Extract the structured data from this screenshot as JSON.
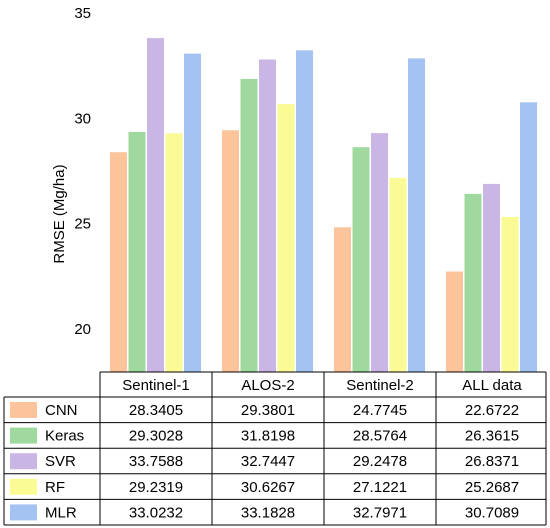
{
  "chart_data": {
    "type": "bar",
    "categories": [
      "Sentinel-1",
      "ALOS-2",
      "Sentinel-2",
      "ALL data"
    ],
    "series": [
      {
        "name": "CNN",
        "color": "#fbc49a",
        "values": [
          28.3405,
          29.3801,
          24.7745,
          22.6722
        ]
      },
      {
        "name": "Keras",
        "color": "#9fd9a0",
        "values": [
          29.3028,
          31.8198,
          28.5764,
          26.3615
        ]
      },
      {
        "name": "SVR",
        "color": "#c9b6e4",
        "values": [
          33.7588,
          32.7447,
          29.2478,
          26.8371
        ]
      },
      {
        "name": "RF",
        "color": "#fbfb95",
        "values": [
          29.2319,
          30.6267,
          27.1221,
          25.2687
        ]
      },
      {
        "name": "MLR",
        "color": "#a4c3f3",
        "values": [
          33.0232,
          33.1828,
          32.7971,
          30.7089
        ]
      }
    ],
    "table_values": [
      [
        "28.3405",
        "29.3801",
        "24.7745",
        "22.6722"
      ],
      [
        "29.3028",
        "31.8198",
        "28.5764",
        "26.3615"
      ],
      [
        "33.7588",
        "32.7447",
        "29.2478",
        "26.8371"
      ],
      [
        "29.2319",
        "30.6267",
        "27.1221",
        "25.2687"
      ],
      [
        "33.0232",
        "33.1828",
        "32.7971",
        "30.7089"
      ]
    ],
    "ylabel": "RMSE (Mg/ha)",
    "xlabel": "",
    "ylim": [
      17.9,
      35
    ],
    "yticks": [
      20,
      25,
      30,
      35
    ],
    "grid": false,
    "legend": "embedded in data table"
  }
}
